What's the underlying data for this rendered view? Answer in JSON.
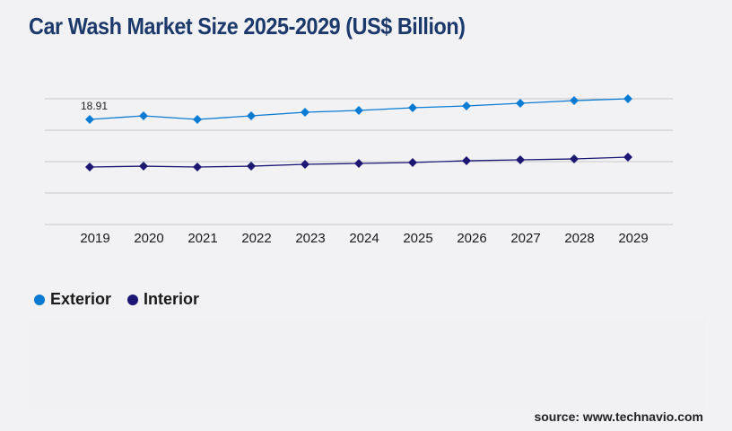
{
  "chart_data": {
    "type": "line",
    "title": "Car Wash Market Size 2025-2029 (US$ Billion)",
    "xlabel": "",
    "ylabel": "",
    "categories": [
      "2019",
      "2020",
      "2021",
      "2022",
      "2023",
      "2024",
      "2025",
      "2026",
      "2027",
      "2028",
      "2029"
    ],
    "series": [
      {
        "name": "Exterior",
        "color": "#0a7bd3",
        "values": [
          18.91,
          19.56,
          18.91,
          19.56,
          20.2,
          20.53,
          21.01,
          21.34,
          21.82,
          22.3,
          22.63
        ]
      },
      {
        "name": "Interior",
        "color": "#1c1675",
        "values": [
          10.34,
          10.5,
          10.34,
          10.5,
          10.83,
          10.99,
          11.15,
          11.47,
          11.64,
          11.8,
          12.12
        ]
      }
    ],
    "data_labels": [
      {
        "series": "Exterior",
        "category": "2019",
        "text": "18.91"
      }
    ],
    "ylim": [
      0,
      22.63
    ],
    "gridlines": 5,
    "grid": true,
    "legend_position": "bottom-left",
    "y_tick_labels_visible": false
  },
  "source": "source: www.technavio.com"
}
